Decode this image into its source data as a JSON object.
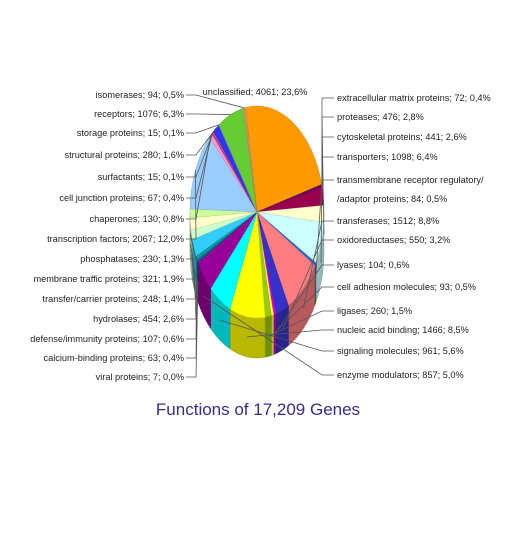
{
  "chart_data": {
    "type": "pie",
    "title": "Functions of 17,209 Genes",
    "slices": [
      {
        "label": "unclassified; 4061; 23,6%",
        "name": "unclassified",
        "value": 4061,
        "percent": 23.6,
        "color": "#ff9900"
      },
      {
        "label": "extracellular matrix proteins; 72; 0,4%",
        "name": "extracellular matrix proteins",
        "value": 72,
        "percent": 0.4,
        "color": "#660066"
      },
      {
        "label": "proteases; 476; 2,8%",
        "name": "proteases",
        "value": 476,
        "percent": 2.8,
        "color": "#99004d"
      },
      {
        "label": "cytoskeletal proteins; 441; 2,6%",
        "name": "cytoskeletal proteins",
        "value": 441,
        "percent": 2.6,
        "color": "#ffffcc"
      },
      {
        "label": "transporters; 1098; 6,4%",
        "name": "transporters",
        "value": 1098,
        "percent": 6.4,
        "color": "#ccffff"
      },
      {
        "label": "transmembrane receptor regulatory/ /adaptor proteins; 84; 0,5%",
        "name": "transmembrane receptor regulatory/adaptor proteins",
        "value": 84,
        "percent": 0.5,
        "color": "#3366cc"
      },
      {
        "label": "transferases; 1512; 8,8%",
        "name": "transferases",
        "value": 1512,
        "percent": 8.8,
        "color": "#ff7c80"
      },
      {
        "label": "oxidoreductases; 550; 3,2%",
        "name": "oxidoreductases",
        "value": 550,
        "percent": 3.2,
        "color": "#3333cc"
      },
      {
        "label": "lyases; 104; 0,6%",
        "name": "lyases",
        "value": 104,
        "percent": 0.6,
        "color": "#cc00cc"
      },
      {
        "label": "cell adhesion molecules; 93; 0,5%",
        "name": "cell adhesion molecules",
        "value": 93,
        "percent": 0.5,
        "color": "#ffff66"
      },
      {
        "label": "ligases; 260; 1,5%",
        "name": "ligases",
        "value": 260,
        "percent": 1.5,
        "color": "#99cc00"
      },
      {
        "label": "nucleic acid binding; 1466; 8,5%",
        "name": "nucleic acid binding",
        "value": 1466,
        "percent": 8.5,
        "color": "#ffff00"
      },
      {
        "label": "signaling molecules; 961; 5,6%",
        "name": "signaling molecules",
        "value": 961,
        "percent": 5.6,
        "color": "#00ffff"
      },
      {
        "label": "enzyme modulators; 857; 5,0%",
        "name": "enzyme modulators",
        "value": 857,
        "percent": 5.0,
        "color": "#990099"
      },
      {
        "label": "viral proteins; 7; 0,0%",
        "name": "viral proteins",
        "value": 7,
        "percent": 0.0,
        "color": "#333399"
      },
      {
        "label": "calcium-binding proteins; 63; 0,4%",
        "name": "calcium-binding proteins",
        "value": 63,
        "percent": 0.4,
        "color": "#006699"
      },
      {
        "label": "defense/immunity proteins; 107; 0,6%",
        "name": "defense/immunity proteins",
        "value": 107,
        "percent": 0.6,
        "color": "#009999"
      },
      {
        "label": "hydrolases; 454; 2,6%",
        "name": "hydrolases",
        "value": 454,
        "percent": 2.6,
        "color": "#33ccff"
      },
      {
        "label": "transfer/carrier proteins; 248; 1,4%",
        "name": "transfer/carrier proteins",
        "value": 248,
        "percent": 1.4,
        "color": "#ccffcc"
      },
      {
        "label": "membrane traffic proteins; 321; 1,9%",
        "name": "membrane traffic proteins",
        "value": 321,
        "percent": 1.9,
        "color": "#ffffcc"
      },
      {
        "label": "phosphatases; 230; 1,3%",
        "name": "phosphatases",
        "value": 230,
        "percent": 1.3,
        "color": "#ccff99"
      },
      {
        "label": "transcription factors; 2067; 12,0%",
        "name": "transcription factors",
        "value": 2067,
        "percent": 12.0,
        "color": "#99ccff"
      },
      {
        "label": "chaperones; 130; 0,8%",
        "name": "chaperones",
        "value": 130,
        "percent": 0.8,
        "color": "#ff99cc"
      },
      {
        "label": "cell junction proteins; 67; 0,4%",
        "name": "cell junction proteins",
        "value": 67,
        "percent": 0.4,
        "color": "#cc3399"
      },
      {
        "label": "surfactants; 15; 0,1%",
        "name": "surfactants",
        "value": 15,
        "percent": 0.1,
        "color": "#ffcc00"
      },
      {
        "label": "structural proteins; 280; 1,6%",
        "name": "structural proteins",
        "value": 280,
        "percent": 1.6,
        "color": "#3333ff"
      },
      {
        "label": "storage proteins; 15; 0,1%",
        "name": "storage proteins",
        "value": 15,
        "percent": 0.1,
        "color": "#ccccff"
      },
      {
        "label": "receptors; 1076; 6,3%",
        "name": "receptors",
        "value": 1076,
        "percent": 6.3,
        "color": "#66cc33"
      },
      {
        "label": "isomerases; 94; 0,5%",
        "name": "isomerases",
        "value": 94,
        "percent": 0.5,
        "color": "#cc9966"
      }
    ]
  }
}
